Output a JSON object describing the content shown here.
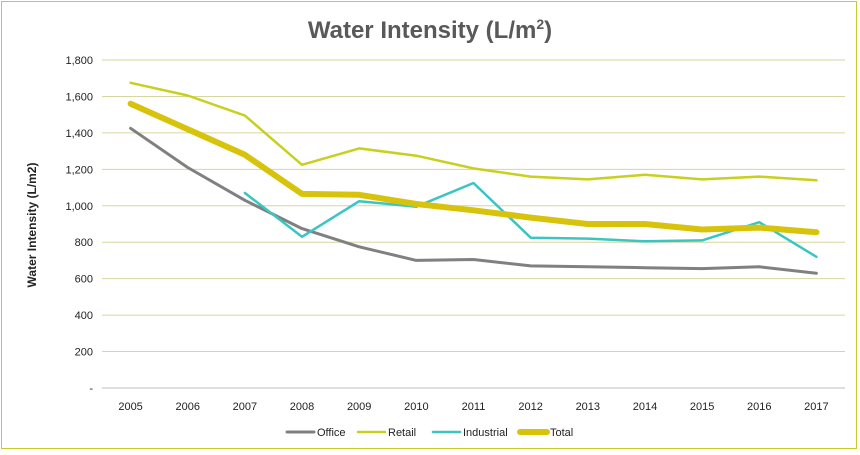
{
  "chart_data": {
    "type": "line",
    "title": "Water Intensity (L/m",
    "title_sup": "2",
    "title_end": ")",
    "xlabel": "",
    "ylabel": "Water Intensity (L/m2)",
    "categories": [
      "2005",
      "2006",
      "2007",
      "2008",
      "2009",
      "2010",
      "2011",
      "2012",
      "2013",
      "2014",
      "2015",
      "2016",
      "2017"
    ],
    "ylim": [
      0,
      1800
    ],
    "yticks": [
      0,
      200,
      400,
      600,
      800,
      1000,
      1200,
      1400,
      1600,
      1800
    ],
    "ytick_labels": [
      "-",
      "200",
      "400",
      "600",
      "800",
      "1,000",
      "1,200",
      "1,400",
      "1,600",
      "1,800"
    ],
    "grid": true,
    "legend_position": "bottom",
    "series": [
      {
        "name": "Office",
        "color": "#808080",
        "values": [
          1425,
          1210,
          1030,
          875,
          775,
          700,
          705,
          670,
          665,
          660,
          655,
          665,
          630
        ]
      },
      {
        "name": "Retail",
        "color": "#c9cf1f",
        "values": [
          1675,
          1605,
          1495,
          1225,
          1315,
          1275,
          1205,
          1160,
          1145,
          1170,
          1145,
          1160,
          1140
        ]
      },
      {
        "name": "Industrial",
        "color": "#39c6c3",
        "values": [
          null,
          null,
          1070,
          830,
          1025,
          995,
          1125,
          825,
          820,
          805,
          810,
          910,
          720
        ]
      },
      {
        "name": "Total",
        "color": "#d8c30c",
        "values": [
          1560,
          1420,
          1280,
          1065,
          1060,
          1010,
          975,
          935,
          900,
          900,
          870,
          880,
          855
        ]
      }
    ]
  }
}
